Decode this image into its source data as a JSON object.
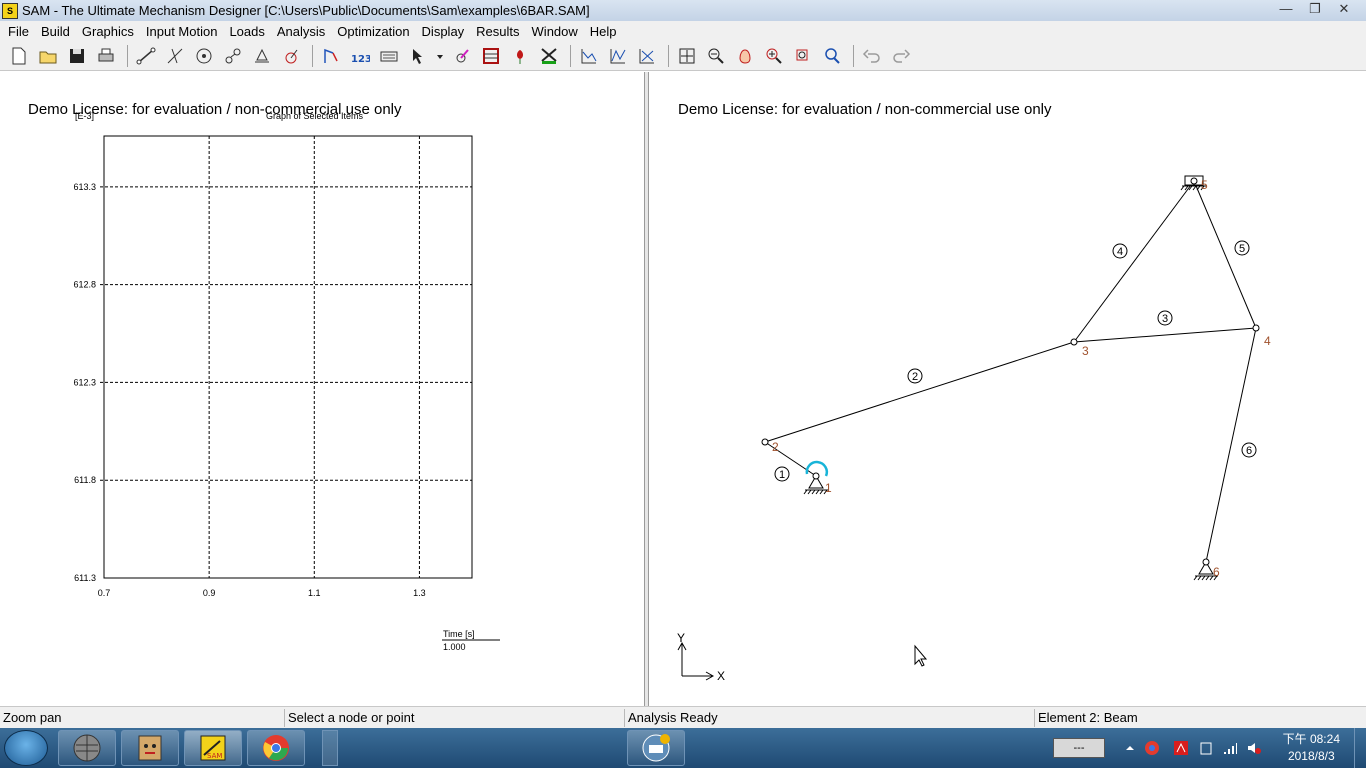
{
  "window": {
    "title": "SAM - The Ultimate Mechanism Designer [C:\\Users\\Public\\Documents\\Sam\\examples\\6BAR.SAM]",
    "controls": [
      "minimize",
      "restore",
      "close"
    ]
  },
  "menu": [
    "File",
    "Build",
    "Graphics",
    "Input Motion",
    "Loads",
    "Analysis",
    "Optimization",
    "Display",
    "Results",
    "Window",
    "Help"
  ],
  "toolbar": {
    "icons": [
      "new-file-icon",
      "open-folder-icon",
      "save-icon",
      "print-icon",
      "beam-element-icon",
      "slider-element-icon",
      "gear-element-icon",
      "belt-element-icon",
      "ground-node-icon",
      "spring-element-icon",
      "input-motion-icon",
      "numbering-icon",
      "keyboard-icon",
      "select-arrow-icon",
      "dropdown-icon",
      "force-icon",
      "ruler-icon",
      "tulip-icon",
      "mill-icon",
      "graph-1-icon",
      "graph-2-icon",
      "graph-3-icon",
      "pan-icon",
      "zoom-out-icon",
      "hand-icon",
      "zoom-in-icon",
      "zoom-window-icon",
      "zoom-fit-icon",
      "undo-icon",
      "redo-icon"
    ]
  },
  "left_panel": {
    "license": "Demo License: for evaluation / non-commercial use only",
    "graph_title": "Graph of Selected Items",
    "y_unit": "[E-3]",
    "time_label": "Time [s]",
    "time_value": "1.000"
  },
  "chart_data": {
    "type": "line",
    "title": "Graph of Selected Items",
    "ylabel": "[E-3]",
    "xlabel": "Time [s]",
    "xlim": [
      0.7,
      1.4
    ],
    "ylim": [
      611.3,
      613.56
    ],
    "x_ticks": [
      "0.7",
      "0.9",
      "1.1",
      "1.3"
    ],
    "y_ticks": [
      "613.3",
      "612.8",
      "612.3",
      "611.8",
      "611.3"
    ],
    "series": [],
    "grid": true
  },
  "right_panel": {
    "license": "Demo License: for evaluation / non-commercial use only",
    "axis_x": "X",
    "axis_y": "Y",
    "nodes": [
      "1",
      "2",
      "3",
      "4",
      "5",
      "6"
    ],
    "elements": [
      "1",
      "2",
      "3",
      "4",
      "5",
      "6"
    ]
  },
  "status": {
    "pane1": "Zoom pan",
    "pane2": "Select a node or point",
    "pane3": "Analysis Ready",
    "pane4": "Element 2: Beam"
  },
  "taskbar": {
    "time": "下午 08:24",
    "date": "2018/8/3"
  }
}
